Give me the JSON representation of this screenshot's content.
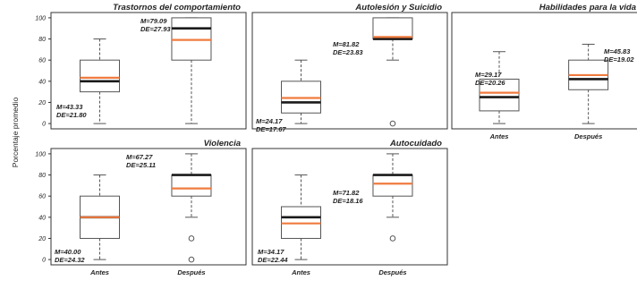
{
  "y_label": "Porcentaje promedio",
  "colors": {
    "median": "#1a1a1a",
    "mean": "#f07b3f",
    "box": "#555555",
    "frame": "#333333"
  },
  "chart_data": [
    {
      "type": "box",
      "title": "Trastornos del comportamiento",
      "ylim": [
        -5,
        105
      ],
      "yticks": [
        "0",
        "20",
        "40",
        "60",
        "80",
        "100"
      ],
      "categories": [
        "Antes",
        "Después"
      ],
      "categories_labeled": false,
      "boxes": [
        {
          "min": 0,
          "q1": 30,
          "median": 40,
          "mean": 43.33,
          "q3": 60,
          "max": 80,
          "outliers": [],
          "stat_m": "M=43.33",
          "stat_de": "DE=21.80"
        },
        {
          "min": 0,
          "q1": 60,
          "median": 90,
          "mean": 79.09,
          "q3": 100,
          "max": 100,
          "outliers": [],
          "stat_m": "M=79.09",
          "stat_de": "DE=27.93"
        }
      ]
    },
    {
      "type": "box",
      "title": "Autolesión y Suicidio",
      "ylim": [
        -5,
        105
      ],
      "yticks": [],
      "categories": [
        "Antes",
        "Después"
      ],
      "categories_labeled": false,
      "boxes": [
        {
          "min": 0,
          "q1": 10,
          "median": 20,
          "mean": 24.17,
          "q3": 40,
          "max": 60,
          "outliers": [],
          "stat_m": "M=24.17",
          "stat_de": "DE=17.67"
        },
        {
          "min": 60,
          "q1": 80,
          "median": 80,
          "mean": 81.82,
          "q3": 100,
          "max": 100,
          "outliers": [
            0
          ],
          "stat_m": "M=81.82",
          "stat_de": "DE=23.83"
        }
      ]
    },
    {
      "type": "box",
      "title": "Habilidades para la vida",
      "ylim": [
        -5,
        105
      ],
      "yticks": [],
      "categories": [
        "Antes",
        "Después"
      ],
      "categories_labeled": true,
      "boxes": [
        {
          "min": 0,
          "q1": 12,
          "median": 25,
          "mean": 29.17,
          "q3": 42,
          "max": 68,
          "outliers": [],
          "stat_m": "M=29.17",
          "stat_de": "DE=20.26"
        },
        {
          "min": 0,
          "q1": 32,
          "median": 42,
          "mean": 45.83,
          "q3": 60,
          "max": 75,
          "outliers": [],
          "stat_m": "M=45.83",
          "stat_de": "DE=19.02"
        }
      ]
    },
    {
      "type": "box",
      "title": "Violencia",
      "ylim": [
        -5,
        105
      ],
      "yticks": [
        "0",
        "20",
        "40",
        "60",
        "80",
        "100"
      ],
      "categories": [
        "Antes",
        "Después"
      ],
      "categories_labeled": true,
      "boxes": [
        {
          "min": 0,
          "q1": 20,
          "median": 40,
          "mean": 40.0,
          "q3": 60,
          "max": 80,
          "outliers": [],
          "stat_m": "M=40.00",
          "stat_de": "DE=24.32"
        },
        {
          "min": 40,
          "q1": 60,
          "median": 80,
          "mean": 67.27,
          "q3": 80,
          "max": 100,
          "outliers": [
            20,
            0
          ],
          "stat_m": "M=67.27",
          "stat_de": "DE=25.11"
        }
      ]
    },
    {
      "type": "box",
      "title": "Autocuidado",
      "ylim": [
        -5,
        105
      ],
      "yticks": [],
      "categories": [
        "Antes",
        "Después"
      ],
      "categories_labeled": true,
      "boxes": [
        {
          "min": 0,
          "q1": 20,
          "median": 40,
          "mean": 34.17,
          "q3": 50,
          "max": 80,
          "outliers": [],
          "stat_m": "M=34.17",
          "stat_de": "DE=22.44"
        },
        {
          "min": 40,
          "q1": 60,
          "median": 80,
          "mean": 71.82,
          "q3": 80,
          "max": 100,
          "outliers": [
            20
          ],
          "stat_m": "M=71.82",
          "stat_de": "DE=18.16"
        }
      ]
    }
  ]
}
